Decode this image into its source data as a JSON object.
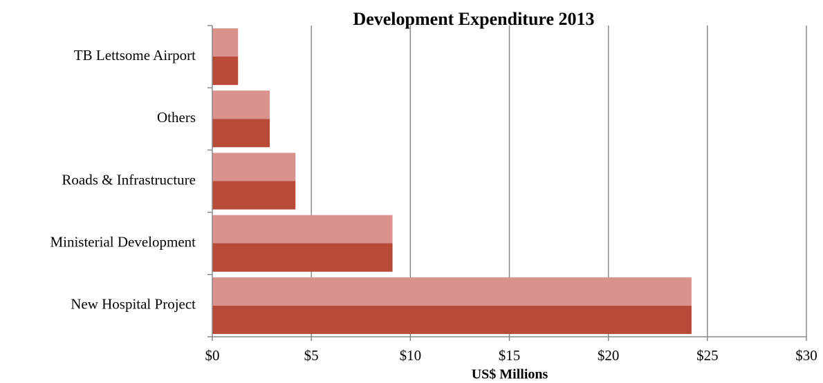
{
  "chart_data": {
    "type": "bar",
    "orientation": "horizontal",
    "title": "Development Expenditure 2013",
    "xlabel": "US$ Millions",
    "categories": [
      "New Hospital Project",
      "Ministerial Development",
      "Roads & Infrastructure",
      "Others",
      "TB Lettsome Airport"
    ],
    "values": [
      24.2,
      9.1,
      4.2,
      2.9,
      1.3
    ],
    "color": "#b84b37",
    "highlight_color": "#d9928c",
    "xlim": [
      0,
      30
    ],
    "xticks": [
      {
        "value": 0,
        "label": "$0"
      },
      {
        "value": 5,
        "label": "$5"
      },
      {
        "value": 10,
        "label": "$10"
      },
      {
        "value": 15,
        "label": "$15"
      },
      {
        "value": 20,
        "label": "$20"
      },
      {
        "value": 25,
        "label": "$25"
      },
      {
        "value": 30,
        "label": "$30"
      }
    ],
    "grid": true
  }
}
